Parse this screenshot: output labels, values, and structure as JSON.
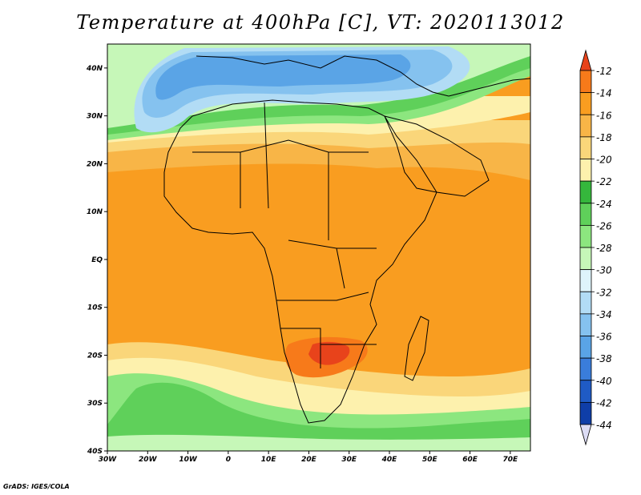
{
  "title": "Temperature at 400hPa [C], VT: 2020113012",
  "credit": "GrADS: IGES/COLA",
  "map": {
    "lat_ticks": [
      "40N",
      "30N",
      "20N",
      "10N",
      "EQ",
      "10S",
      "20S",
      "30S",
      "40S"
    ],
    "lon_ticks": [
      "30W",
      "20W",
      "10W",
      "0",
      "10E",
      "20E",
      "30E",
      "40E",
      "50E",
      "60E",
      "70E"
    ]
  },
  "colorbar": {
    "labels": [
      "-12",
      "-14",
      "-16",
      "-18",
      "-20",
      "-22",
      "-24",
      "-26",
      "-28",
      "-30",
      "-32",
      "-34",
      "-36",
      "-38",
      "-40",
      "-42",
      "-44"
    ],
    "colors": [
      "#e8431b",
      "#f77a1a",
      "#f99d20",
      "#f8b547",
      "#fad67a",
      "#fdf1ad",
      "#35b73c",
      "#5fd05a",
      "#8ce67f",
      "#c6f7b8",
      "#def4fb",
      "#b2dcf5",
      "#85c2ef",
      "#5aa4e6",
      "#3a7ddb",
      "#1f5bc5",
      "#0f3ea8",
      "#0a1f78",
      "#dcdcf5"
    ],
    "top_arrow_color": "#e8431b",
    "bottom_arrow_color": "#dcdcf5"
  }
}
